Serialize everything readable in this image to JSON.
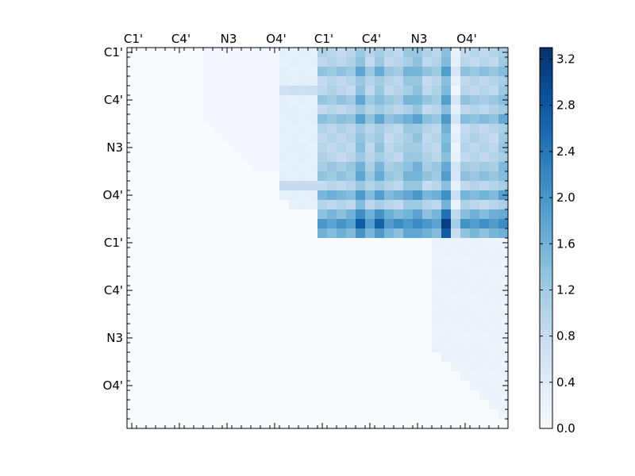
{
  "chart_data": {
    "type": "heatmap",
    "size": 40,
    "x_tick_labels": [
      "C1'",
      "C4'",
      "N3",
      "O4'",
      "C1'",
      "C4'",
      "N3",
      "O4'"
    ],
    "y_tick_labels": [
      "C1'",
      "C4'",
      "N3",
      "O4'",
      "C1'",
      "C4'",
      "N3",
      "O4'"
    ],
    "tick_positions": [
      0.5,
      5.5,
      10.5,
      15.5,
      20.5,
      25.5,
      30.5,
      35.5
    ],
    "colorbar": {
      "min": 0.0,
      "max": 3.3,
      "ticks": [
        0.0,
        0.4,
        0.8,
        1.2,
        1.6,
        2.0,
        2.4,
        2.8,
        3.2
      ],
      "tick_labels": [
        "0.0",
        "0.4",
        "0.8",
        "1.2",
        "1.6",
        "2.0",
        "2.4",
        "2.8",
        "3.2"
      ],
      "colormap": "Blues",
      "colormap_stops": [
        "#f7fbff",
        "#deebf7",
        "#c6dbef",
        "#9ecae1",
        "#6baed6",
        "#4292c6",
        "#2171b5",
        "#08519c",
        "#08306b"
      ]
    },
    "background_value": 0.0,
    "blocks": [
      {
        "rows": [
          0,
          19
        ],
        "cols": [
          20,
          39
        ],
        "value": 0.95,
        "row_bands": [
          {
            "rows": [
              2,
              2
            ],
            "add": 0.35
          },
          {
            "rows": [
              5,
              5
            ],
            "add": 0.3
          },
          {
            "rows": [
              7,
              7
            ],
            "add": 0.45
          },
          {
            "rows": [
              12,
              12
            ],
            "add": 0.25
          },
          {
            "rows": [
              13,
              13
            ],
            "add": 0.35
          },
          {
            "rows": [
              15,
              15
            ],
            "add": 0.6
          },
          {
            "rows": [
              17,
              17
            ],
            "add": 0.5
          },
          {
            "rows": [
              18,
              18
            ],
            "add": 0.6
          },
          {
            "rows": [
              19,
              19
            ],
            "add": 0.5
          }
        ],
        "col_bands": [
          {
            "cols": [
              24,
              24
            ],
            "add": 0.4
          },
          {
            "cols": [
              26,
              26
            ],
            "add": 0.3
          },
          {
            "cols": [
              29,
              29
            ],
            "add": 0.25
          },
          {
            "cols": [
              30,
              30
            ],
            "add": 0.35
          },
          {
            "cols": [
              33,
              33
            ],
            "add": 0.55
          },
          {
            "cols": [
              34,
              34
            ],
            "add": -0.7
          },
          {
            "cols": [
              39,
              39
            ],
            "add": 0.25
          }
        ]
      },
      {
        "rows": [
          17,
          19
        ],
        "cols": [
          20,
          39
        ],
        "value": 1.5,
        "row_bands": [
          {
            "rows": [
              18,
              18
            ],
            "add": 0.5
          }
        ],
        "col_bands": [
          {
            "cols": [
              24,
              24
            ],
            "add": 0.7
          },
          {
            "cols": [
              26,
              26
            ],
            "add": 0.6
          },
          {
            "cols": [
              33,
              33
            ],
            "add": 1.1
          },
          {
            "cols": [
              34,
              34
            ],
            "add": -0.7
          }
        ]
      },
      {
        "rows": [
          0,
          16
        ],
        "cols": [
          16,
          19
        ],
        "value": 0.3,
        "row_bands": [
          {
            "rows": [
              4,
              4
            ],
            "add": 0.4
          },
          {
            "rows": [
              14,
              14
            ],
            "add": 0.5
          }
        ],
        "col_bands": []
      },
      {
        "rows": [
          0,
          12
        ],
        "cols": [
          8,
          15
        ],
        "value": 0.08,
        "row_bands": [],
        "col_bands": []
      },
      {
        "rows": [
          20,
          39
        ],
        "cols": [
          32,
          39
        ],
        "value": 0.2,
        "row_bands": [],
        "col_bands": []
      }
    ]
  }
}
